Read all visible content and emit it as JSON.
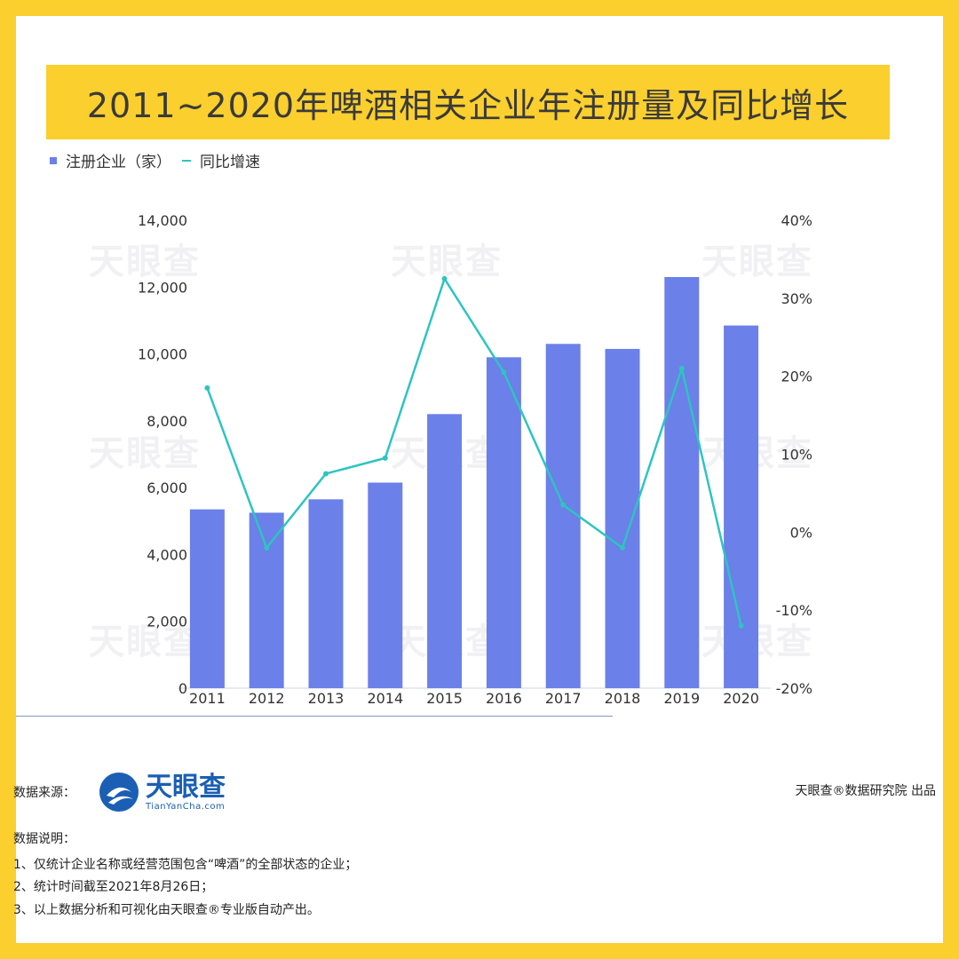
{
  "title": "2011~2020年啤酒相关企业年注册量及同比增长",
  "legend": {
    "bar_label": "注册企业（家）",
    "line_label": "同比增速"
  },
  "watermark_text": "天眼查",
  "chart_data": {
    "type": "bar",
    "categories": [
      "2011",
      "2012",
      "2013",
      "2014",
      "2015",
      "2016",
      "2017",
      "2018",
      "2019",
      "2020"
    ],
    "series": [
      {
        "name": "注册企业（家）",
        "type": "bar",
        "axis": "left",
        "values": [
          5350,
          5250,
          5650,
          6150,
          8200,
          9900,
          10300,
          10150,
          12300,
          10850
        ]
      },
      {
        "name": "同比增速",
        "type": "line",
        "axis": "right",
        "values": [
          18.5,
          -2.0,
          7.5,
          9.5,
          32.5,
          20.5,
          3.5,
          -2.0,
          21.0,
          -12.0
        ]
      }
    ],
    "y_left": {
      "lim": [
        0,
        14000
      ],
      "ticks": [
        "0",
        "2,000",
        "4,000",
        "6,000",
        "8,000",
        "10,000",
        "12,000",
        "14,000"
      ],
      "tick_values": [
        0,
        2000,
        4000,
        6000,
        8000,
        10000,
        12000,
        14000
      ]
    },
    "y_right": {
      "lim": [
        -20,
        40
      ],
      "ticks": [
        "-20%",
        "-10%",
        "0%",
        "10%",
        "20%",
        "30%",
        "40%"
      ],
      "tick_values": [
        -20,
        -10,
        0,
        10,
        20,
        30,
        40
      ]
    },
    "grid": false,
    "legend_position": "top-left"
  },
  "colors": {
    "bar": "#6b80e8",
    "line": "#2ec4c0",
    "frame": "#fbcf2e",
    "axis_text": "#333333"
  },
  "footer": {
    "source_label": "数据来源：",
    "logo_name": "天眼查",
    "logo_url_text": "TianYanCha.com",
    "publisher": "天眼查®数据研究院 出品",
    "notes_title": "数据说明：",
    "notes": [
      "1、仅统计企业名称或经营范围包含“啤酒”的全部状态的企业；",
      "2、统计时间截至2021年8月26日；",
      "3、以上数据分析和可视化由天眼查®专业版自动产出。"
    ]
  }
}
